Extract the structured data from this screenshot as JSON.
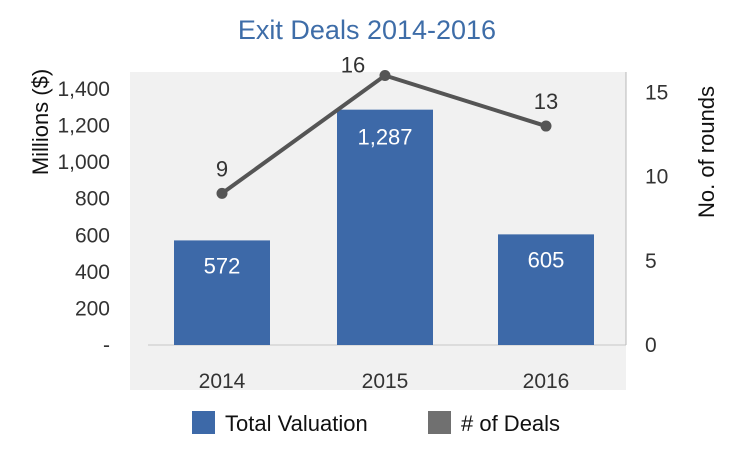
{
  "chart_data": {
    "type": "bar",
    "title": "Exit Deals 2014-2016",
    "categories": [
      "2014",
      "2015",
      "2016"
    ],
    "series": [
      {
        "name": "Total Valuation",
        "kind": "bar",
        "axis": "left",
        "values": [
          572,
          1287,
          605
        ],
        "labels": [
          "572",
          "1,287",
          "605"
        ],
        "color": "#3d69a8"
      },
      {
        "name": "# of Deals",
        "kind": "line",
        "axis": "right",
        "values": [
          9,
          16,
          13
        ],
        "labels": [
          "9",
          "16",
          "13"
        ],
        "color": "#555555"
      }
    ],
    "ylabel": "Millions ($)",
    "ylim": [
      0,
      1400
    ],
    "yticks": [
      0,
      200,
      400,
      600,
      800,
      1000,
      1200,
      1400
    ],
    "ytick_labels": [
      "-",
      "200",
      "400",
      "600",
      "800",
      "1,000",
      "1,200",
      "1,400"
    ],
    "y2label": "No. of rounds",
    "y2lim": [
      0,
      15.2
    ],
    "y2ticks": [
      0,
      5,
      10,
      15
    ],
    "y2tick_labels": [
      "0",
      "5",
      "10",
      "15"
    ],
    "legend_position": "bottom",
    "legend": [
      {
        "label": "Total Valuation",
        "color": "#3d69a8"
      },
      {
        "label": "# of Deals",
        "color": "#707070"
      }
    ],
    "plot_background": "#f1f1f1",
    "title_color": "#3e6da8"
  }
}
